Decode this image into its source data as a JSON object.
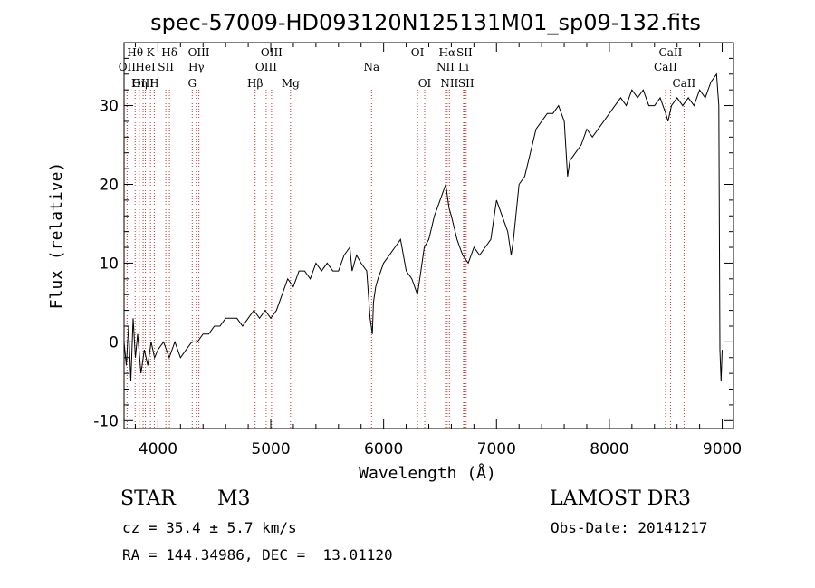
{
  "chart_data": {
    "type": "line",
    "title": "spec-57009-HD093120N125131M01_sp09-132.fits",
    "xlabel": "Wavelength (Å)",
    "ylabel": "Flux (relative)",
    "xlim": [
      3700,
      9100
    ],
    "ylim": [
      -11,
      38
    ],
    "xticks": [
      4000,
      5000,
      6000,
      7000,
      8000,
      9000
    ],
    "yticks": [
      -10,
      0,
      10,
      20,
      30
    ],
    "series": [
      {
        "name": "flux",
        "x": [
          3700,
          3720,
          3740,
          3760,
          3780,
          3800,
          3820,
          3850,
          3880,
          3910,
          3940,
          3970,
          4000,
          4050,
          4100,
          4150,
          4200,
          4250,
          4300,
          4350,
          4400,
          4450,
          4500,
          4550,
          4600,
          4650,
          4700,
          4750,
          4800,
          4850,
          4900,
          4950,
          5000,
          5050,
          5100,
          5150,
          5200,
          5250,
          5300,
          5350,
          5400,
          5450,
          5500,
          5550,
          5600,
          5650,
          5700,
          5720,
          5760,
          5800,
          5850,
          5880,
          5900,
          5910,
          5930,
          5950,
          6000,
          6050,
          6100,
          6150,
          6200,
          6250,
          6300,
          6330,
          6360,
          6400,
          6450,
          6500,
          6550,
          6580,
          6600,
          6650,
          6700,
          6750,
          6800,
          6850,
          6900,
          6950,
          7000,
          7050,
          7100,
          7130,
          7150,
          7200,
          7250,
          7300,
          7350,
          7400,
          7450,
          7500,
          7550,
          7600,
          7630,
          7650,
          7700,
          7750,
          7800,
          7850,
          7900,
          7950,
          8000,
          8050,
          8100,
          8150,
          8200,
          8250,
          8300,
          8350,
          8400,
          8450,
          8500,
          8520,
          8550,
          8600,
          8650,
          8700,
          8750,
          8800,
          8850,
          8900,
          8950,
          8970,
          8980,
          8990,
          9000
        ],
        "y": [
          0,
          -3,
          2,
          -5,
          3,
          -2,
          1,
          -4,
          -1,
          -3,
          0,
          -2,
          -1,
          0,
          -2,
          0,
          -2,
          -1,
          0,
          0,
          1,
          1,
          2,
          2,
          3,
          3,
          3,
          2,
          3,
          4,
          3,
          4,
          3,
          4,
          6,
          8,
          7,
          9,
          9,
          8,
          10,
          9,
          10,
          9,
          9,
          11,
          12,
          9,
          11,
          10,
          9,
          3,
          1,
          5,
          7,
          8,
          10,
          11,
          12,
          13,
          9,
          8,
          6,
          9,
          12,
          13,
          16,
          18,
          20,
          17,
          16,
          13,
          11,
          10,
          12,
          11,
          12,
          13,
          18,
          16,
          14,
          11,
          13,
          20,
          21,
          24,
          27,
          28,
          29,
          29,
          30,
          28,
          21,
          23,
          24,
          25,
          27,
          26,
          27,
          28,
          29,
          30,
          31,
          30,
          32,
          31,
          32,
          30,
          30,
          31,
          29,
          28,
          30,
          31,
          30,
          31,
          30,
          32,
          31,
          33,
          34,
          30,
          -1,
          -5,
          -1
        ]
      }
    ],
    "emission_lines": [
      {
        "label": "Hθ",
        "x": 3798,
        "row": 1
      },
      {
        "label": "OII",
        "x": 3727,
        "row": 2
      },
      {
        "label": "OIII",
        "x": 3869,
        "row": 3
      },
      {
        "label": "K",
        "x": 3934,
        "row": 1
      },
      {
        "label": "HeI",
        "x": 3889,
        "row": 2
      },
      {
        "label": "Hη",
        "x": 3835,
        "row": 3
      },
      {
        "label": "SII",
        "x": 4070,
        "row": 2
      },
      {
        "label": "H",
        "x": 3968,
        "row": 3
      },
      {
        "label": "Hδ",
        "x": 4102,
        "row": 1
      },
      {
        "label": "OIII",
        "x": 4363,
        "row": 1
      },
      {
        "label": "Hγ",
        "x": 4340,
        "row": 2
      },
      {
        "label": "G",
        "x": 4304,
        "row": 3
      },
      {
        "label": "OIII",
        "x": 5007,
        "row": 1
      },
      {
        "label": "OIII",
        "x": 4959,
        "row": 2
      },
      {
        "label": "Hβ",
        "x": 4861,
        "row": 3
      },
      {
        "label": "Mg",
        "x": 5175,
        "row": 3
      },
      {
        "label": "Na",
        "x": 5893,
        "row": 2
      },
      {
        "label": "OI",
        "x": 6300,
        "row": 1
      },
      {
        "label": "OI",
        "x": 6364,
        "row": 3
      },
      {
        "label": "Hα",
        "x": 6563,
        "row": 1
      },
      {
        "label": "SII",
        "x": 6716,
        "row": 1
      },
      {
        "label": "NII",
        "x": 6548,
        "row": 2
      },
      {
        "label": "Li",
        "x": 6708,
        "row": 2
      },
      {
        "label": "NII",
        "x": 6583,
        "row": 3
      },
      {
        "label": "SII",
        "x": 6731,
        "row": 3
      },
      {
        "label": "CaII",
        "x": 8542,
        "row": 1
      },
      {
        "label": "CaII",
        "x": 8498,
        "row": 2
      },
      {
        "label": "CaII",
        "x": 8662,
        "row": 3
      }
    ]
  },
  "info": {
    "object_type": "STAR",
    "subclass": "M3",
    "survey": "LAMOST DR3",
    "cz": "cz = 35.4 ± 5.7 km/s",
    "obs_date": "Obs-Date: 20141217",
    "coords": "RA = 144.34986, DEC =  13.01120"
  }
}
